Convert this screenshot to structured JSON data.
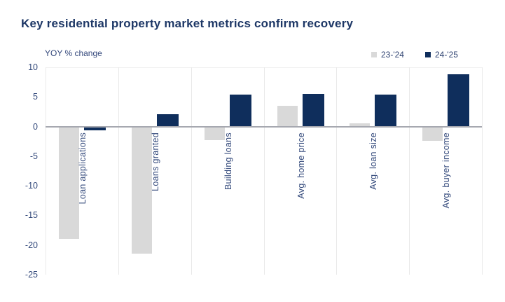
{
  "title": "Key residential property market metrics confirm recovery",
  "chart_data": {
    "type": "bar",
    "title": "Key residential property market metrics confirm recovery",
    "ylabel": "YOY % change",
    "xlabel": "",
    "categories": [
      "Loan applications",
      "Loans granted",
      "Building loans",
      "Avg. home price",
      "Avg. loan size",
      "Avg. buyer income"
    ],
    "series": [
      {
        "name": "23-'24",
        "color": "#d9d9d9",
        "values": [
          -19.0,
          -21.5,
          -2.3,
          3.5,
          0.5,
          -2.4
        ]
      },
      {
        "name": "24-'25",
        "color": "#0f2e5c",
        "values": [
          -0.7,
          2.1,
          5.4,
          5.5,
          5.4,
          8.8
        ]
      }
    ],
    "ylim": [
      -25,
      10
    ],
    "yticks": [
      10,
      5,
      0,
      -5,
      -10,
      -15,
      -20,
      -25
    ],
    "grid": "vertical category separators, faint top border, bold zero line",
    "legend_position": "top-right",
    "bar_label_rotation": "vertical, reading bottom-to-top, placed right of first bar below zero line",
    "colors": {
      "title_text": "#1d3766",
      "axis_text": "#33497b",
      "gridline": "#e9e9e9",
      "zero_line": "#a6a8b0",
      "background": "#ffffff"
    }
  }
}
